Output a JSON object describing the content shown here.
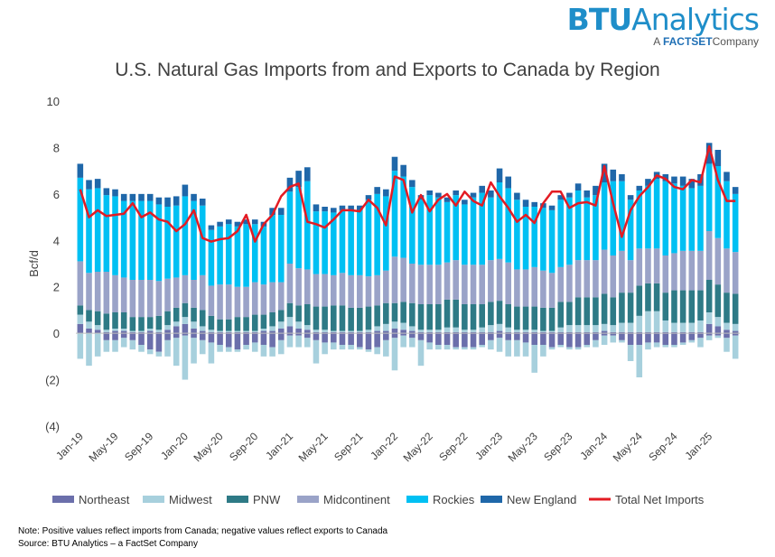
{
  "logo": {
    "brand_bold": "BTU",
    "brand_rest": "Analytics",
    "sub_prefix": "A",
    "sub_brand": "FACTSET",
    "sub_suffix": "Company"
  },
  "notes": {
    "note": "Note: Positive values reflect imports from Canada; negative values reflect exports to Canada",
    "source": "Source: BTU Analytics – a FactSet Company"
  },
  "chart_data": {
    "type": "bar",
    "stacked": true,
    "title": "U.S. Natural Gas Imports from and Exports to Canada by Region",
    "ylabel": "Bcf/d",
    "xlabel": "",
    "ylim": [
      -4,
      10
    ],
    "yticks": [
      -4,
      -2,
      0,
      2,
      4,
      6,
      8,
      10
    ],
    "ytick_labels": [
      "(4)",
      "(2)",
      "0",
      "2",
      "4",
      "6",
      "8",
      "10"
    ],
    "grid": false,
    "legend": "bottom",
    "xtick_labels": [
      "Jan-19",
      "May-19",
      "Sep-19",
      "Jan-20",
      "May-20",
      "Sep-20",
      "Jan-21",
      "May-21",
      "Sep-21",
      "Jan-22",
      "May-22",
      "Sep-22",
      "Jan-23",
      "May-23",
      "Sep-23",
      "Jan-24",
      "May-24",
      "Sep-24",
      "Jan-25"
    ],
    "categories": [
      "Jan-19",
      "Feb-19",
      "Mar-19",
      "Apr-19",
      "May-19",
      "Jun-19",
      "Jul-19",
      "Aug-19",
      "Sep-19",
      "Oct-19",
      "Nov-19",
      "Dec-19",
      "Jan-20",
      "Feb-20",
      "Mar-20",
      "Apr-20",
      "May-20",
      "Jun-20",
      "Jul-20",
      "Aug-20",
      "Sep-20",
      "Oct-20",
      "Nov-20",
      "Dec-20",
      "Jan-21",
      "Feb-21",
      "Mar-21",
      "Apr-21",
      "May-21",
      "Jun-21",
      "Jul-21",
      "Aug-21",
      "Sep-21",
      "Oct-21",
      "Nov-21",
      "Dec-21",
      "Jan-22",
      "Feb-22",
      "Mar-22",
      "Apr-22",
      "May-22",
      "Jun-22",
      "Jul-22",
      "Aug-22",
      "Sep-22",
      "Oct-22",
      "Nov-22",
      "Dec-22",
      "Jan-23",
      "Feb-23",
      "Mar-23",
      "Apr-23",
      "May-23",
      "Jun-23",
      "Jul-23",
      "Aug-23",
      "Sep-23",
      "Oct-23",
      "Nov-23",
      "Dec-23",
      "Jan-24",
      "Feb-24",
      "Mar-24",
      "Apr-24",
      "May-24",
      "Jun-24",
      "Jul-24",
      "Aug-24",
      "Sep-24",
      "Oct-24",
      "Nov-24",
      "Dec-24",
      "Jan-25",
      "Feb-25",
      "Mar-25",
      "Apr-25"
    ],
    "series": [
      {
        "name": "Northeast",
        "color": "#6b6fab",
        "pos": [
          0.4,
          0.2,
          0.15,
          0.05,
          0.1,
          0.1,
          0.05,
          0.05,
          0.1,
          0.05,
          0.15,
          0.3,
          0.4,
          0.2,
          0.1,
          0.05,
          0.05,
          0.05,
          0.05,
          0.05,
          0.05,
          0.1,
          0.1,
          0.2,
          0.3,
          0.2,
          0.15,
          0.05,
          0.05,
          0.05,
          0.05,
          0.05,
          0.05,
          0.05,
          0.1,
          0.1,
          0.2,
          0.15,
          0.1,
          0.05,
          0.05,
          0.05,
          0.05,
          0.05,
          0.05,
          0.05,
          0.05,
          0.05,
          0.1,
          0.05,
          0.05,
          0.05,
          0.05,
          0.05,
          0.05,
          0.05,
          0.05,
          0.05,
          0.05,
          0.05,
          0.1,
          0.05,
          0.05,
          0.05,
          0.05,
          0.05,
          0.05,
          0.05,
          0.05,
          0.05,
          0.05,
          0.05,
          0.4,
          0.3,
          0.15,
          0.1
        ],
        "neg": [
          0,
          0,
          0,
          -0.3,
          -0.3,
          -0.2,
          -0.3,
          -0.5,
          -0.7,
          -0.8,
          -0.3,
          -0.2,
          -0.1,
          -0.2,
          -0.3,
          -0.4,
          -0.5,
          -0.6,
          -0.7,
          -0.5,
          -0.4,
          -0.5,
          -0.6,
          -0.3,
          -0.1,
          -0.1,
          -0.2,
          -0.3,
          -0.4,
          -0.4,
          -0.5,
          -0.5,
          -0.6,
          -0.7,
          -0.6,
          -0.3,
          -0.2,
          -0.1,
          -0.2,
          -0.3,
          -0.4,
          -0.5,
          -0.5,
          -0.6,
          -0.6,
          -0.6,
          -0.5,
          -0.3,
          -0.2,
          -0.3,
          -0.3,
          -0.4,
          -0.5,
          -0.5,
          -0.6,
          -0.5,
          -0.6,
          -0.6,
          -0.5,
          -0.3,
          -0.1,
          -0.1,
          -0.3,
          -0.5,
          -0.5,
          -0.4,
          -0.4,
          -0.5,
          -0.5,
          -0.4,
          -0.3,
          -0.2,
          -0.1,
          -0.1,
          -0.2,
          -0.1
        ]
      },
      {
        "name": "Midwest",
        "color": "#a7d0dd",
        "pos": [
          0.4,
          0.3,
          0.2,
          0.1,
          0.1,
          0.1,
          0.05,
          0.05,
          0.1,
          0.1,
          0.2,
          0.2,
          0.3,
          0.3,
          0.2,
          0.1,
          0.05,
          0.05,
          0.05,
          0.05,
          0.05,
          0.1,
          0.2,
          0.3,
          0.4,
          0.3,
          0.2,
          0.1,
          0.1,
          0.05,
          0.05,
          0.05,
          0.05,
          0.1,
          0.2,
          0.3,
          0.3,
          0.3,
          0.2,
          0.1,
          0.1,
          0.1,
          0.2,
          0.2,
          0.1,
          0.1,
          0.2,
          0.3,
          0.3,
          0.2,
          0.1,
          0.1,
          0.1,
          0.05,
          0.05,
          0.2,
          0.3,
          0.3,
          0.3,
          0.3,
          0.3,
          0.3,
          0.4,
          0.4,
          0.7,
          0.9,
          0.9,
          0.5,
          0.4,
          0.4,
          0.4,
          0.5,
          0.5,
          0.4,
          0.3,
          0.3
        ],
        "neg": [
          -1.1,
          -1.4,
          -1.0,
          -0.5,
          -0.5,
          -0.4,
          -0.4,
          -0.3,
          -0.2,
          -0.2,
          -0.7,
          -1.2,
          -1.9,
          -1.1,
          -0.6,
          -0.9,
          -0.3,
          -0.2,
          -0.1,
          -0.2,
          -0.4,
          -0.5,
          -0.4,
          -0.6,
          -0.5,
          -0.5,
          -0.4,
          -1.0,
          -0.5,
          -0.3,
          -0.2,
          -0.2,
          -0.1,
          -0.1,
          -0.3,
          -0.7,
          -1.4,
          -0.5,
          -0.4,
          -1.1,
          -0.3,
          -0.2,
          -0.2,
          -0.1,
          -0.1,
          -0.1,
          -0.1,
          -0.4,
          -0.6,
          -0.7,
          -0.7,
          -0.6,
          -1.2,
          -0.5,
          -0.1,
          -0.1,
          -0.1,
          -0.1,
          -0.1,
          -0.3,
          -0.4,
          -0.3,
          -0.1,
          -0.7,
          -1.4,
          -0.3,
          -0.2,
          -0.1,
          -0.1,
          -0.1,
          -0.1,
          -0.4,
          -0.2,
          -0.1,
          -0.6,
          -1.0
        ]
      },
      {
        "name": "PNW",
        "color": "#2e7a86",
        "pos": [
          0.4,
          0.5,
          0.6,
          0.7,
          0.7,
          0.7,
          0.6,
          0.6,
          0.5,
          0.6,
          0.6,
          0.6,
          0.6,
          0.6,
          0.7,
          0.6,
          0.5,
          0.5,
          0.6,
          0.6,
          0.7,
          0.6,
          0.6,
          0.5,
          0.6,
          0.7,
          0.9,
          1.0,
          1.0,
          1.1,
          1.1,
          1.0,
          1.0,
          1.0,
          0.9,
          0.9,
          0.8,
          0.9,
          1.0,
          1.1,
          1.1,
          1.1,
          1.2,
          1.2,
          1.1,
          1.1,
          1.0,
          1.0,
          1.0,
          1.0,
          1.0,
          1.0,
          1.0,
          1.0,
          1.0,
          1.1,
          1.0,
          1.2,
          1.2,
          1.2,
          1.3,
          1.2,
          1.3,
          1.3,
          1.3,
          1.2,
          1.2,
          1.2,
          1.4,
          1.4,
          1.4,
          1.3,
          1.4,
          1.4,
          1.3,
          1.3
        ]
      },
      {
        "name": "Midcontinent",
        "color": "#9aa3c8",
        "pos": [
          1.9,
          1.6,
          1.7,
          1.8,
          1.6,
          1.5,
          1.6,
          1.6,
          1.6,
          1.5,
          1.4,
          1.3,
          1.2,
          1.2,
          1.5,
          1.3,
          1.5,
          1.5,
          1.3,
          1.3,
          1.4,
          1.3,
          1.3,
          1.2,
          1.7,
          1.6,
          1.5,
          1.4,
          1.4,
          1.3,
          1.4,
          1.4,
          1.4,
          1.3,
          1.3,
          1.4,
          2.0,
          1.9,
          1.7,
          1.7,
          1.7,
          1.7,
          1.6,
          1.7,
          1.7,
          1.7,
          1.7,
          1.8,
          1.8,
          1.8,
          1.6,
          1.6,
          1.7,
          1.6,
          1.5,
          1.5,
          1.6,
          1.6,
          1.6,
          1.6,
          1.9,
          1.8,
          1.8,
          1.4,
          1.6,
          1.5,
          1.5,
          1.6,
          1.6,
          1.7,
          1.7,
          1.7,
          2.1,
          2.0,
          1.9,
          1.8
        ]
      },
      {
        "name": "Rockies",
        "color": "#00c0f3",
        "pos": [
          3.6,
          3.6,
          3.6,
          3.3,
          3.4,
          3.3,
          3.4,
          3.4,
          3.4,
          3.3,
          3.1,
          3.1,
          3.4,
          3.4,
          3.0,
          2.4,
          2.5,
          2.6,
          2.6,
          2.7,
          2.5,
          2.5,
          2.9,
          2.9,
          3.1,
          3.5,
          3.8,
          2.7,
          2.7,
          2.7,
          2.7,
          2.8,
          2.8,
          3.3,
          3.5,
          3.2,
          3.7,
          3.5,
          3.3,
          2.8,
          3.0,
          2.9,
          2.6,
          2.8,
          2.6,
          2.9,
          3.1,
          2.7,
          3.3,
          3.2,
          3.0,
          2.7,
          2.6,
          2.7,
          2.7,
          2.9,
          2.9,
          3.0,
          2.7,
          2.8,
          2.9,
          3.2,
          3.0,
          2.6,
          2.5,
          2.7,
          3.0,
          3.2,
          3.0,
          2.8,
          2.7,
          2.8,
          2.9,
          3.1,
          2.9,
          2.5
        ],
        "neg": []
      },
      {
        "name": "New England",
        "color": "#1f67a9",
        "pos": [
          0.6,
          0.4,
          0.4,
          0.3,
          0.3,
          0.3,
          0.3,
          0.3,
          0.3,
          0.3,
          0.4,
          0.4,
          0.5,
          0.3,
          0.3,
          0.2,
          0.2,
          0.2,
          0.2,
          0.2,
          0.2,
          0.2,
          0.3,
          0.3,
          0.6,
          0.7,
          0.6,
          0.3,
          0.2,
          0.2,
          0.2,
          0.2,
          0.2,
          0.2,
          0.3,
          0.3,
          0.6,
          0.5,
          0.3,
          0.2,
          0.2,
          0.2,
          0.2,
          0.2,
          0.2,
          0.2,
          0.3,
          0.3,
          0.6,
          0.5,
          0.3,
          0.3,
          0.2,
          0.2,
          0.2,
          0.2,
          0.2,
          0.3,
          0.3,
          0.4,
          0.8,
          0.5,
          0.3,
          0.2,
          0.2,
          0.3,
          0.3,
          0.3,
          0.3,
          0.4,
          0.4,
          0.5,
          0.9,
          0.7,
          0.4,
          0.3
        ]
      },
      {
        "name": "Total Net Imports",
        "color": "#e31b23",
        "type": "line",
        "values": [
          6.2,
          5.0,
          5.3,
          5.05,
          5.1,
          5.15,
          5.6,
          5.0,
          5.2,
          4.9,
          4.8,
          4.4,
          4.7,
          5.3,
          4.1,
          3.95,
          4.05,
          4.1,
          4.4,
          5.1,
          3.95,
          4.7,
          5.1,
          5.9,
          6.3,
          6.45,
          4.8,
          4.7,
          4.55,
          4.9,
          5.3,
          5.3,
          5.25,
          5.75,
          5.4,
          4.65,
          6.75,
          6.6,
          5.2,
          5.95,
          5.25,
          5.75,
          6.0,
          5.5,
          6.1,
          5.7,
          5.5,
          6.5,
          5.9,
          5.4,
          4.8,
          5.1,
          4.75,
          5.6,
          6.1,
          6.1,
          5.4,
          5.6,
          5.65,
          5.5,
          7.2,
          5.6,
          4.15,
          5.3,
          5.9,
          6.3,
          6.8,
          6.65,
          6.3,
          6.2,
          6.6,
          6.5,
          8.05,
          6.6,
          5.7,
          5.7
        ]
      }
    ]
  }
}
